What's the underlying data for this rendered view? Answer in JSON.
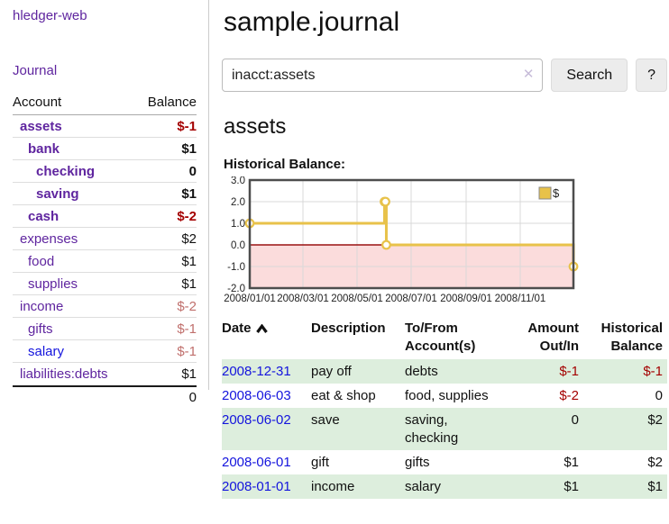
{
  "colors": {
    "purple": "#5f259f",
    "blue": "#1414dd",
    "negStrong": "#a40000",
    "negMuted": "#c06f6c",
    "green": "#ddeedd",
    "chartLine": "#e8c24a",
    "chartNegFill": "#fbdcdc",
    "chartZero": "#991111"
  },
  "app": {
    "title": "hledger-web",
    "nav_journal": "Journal"
  },
  "sidebar": {
    "header": {
      "account": "Account",
      "balance": "Balance"
    },
    "accounts": [
      {
        "name": "assets",
        "indent": 0,
        "bold": true,
        "balance": "$-1",
        "balance_style": "neg"
      },
      {
        "name": "bank",
        "indent": 1,
        "bold": true,
        "balance": "$1",
        "balance_style": ""
      },
      {
        "name": "checking",
        "indent": 2,
        "bold": true,
        "balance": "0",
        "balance_style": ""
      },
      {
        "name": "saving",
        "indent": 2,
        "bold": true,
        "balance": "$1",
        "balance_style": ""
      },
      {
        "name": "cash",
        "indent": 1,
        "bold": true,
        "balance": "$-2",
        "balance_style": "neg"
      },
      {
        "name": "expenses",
        "indent": 0,
        "bold": false,
        "balance": "$2",
        "balance_style": ""
      },
      {
        "name": "food",
        "indent": 1,
        "bold": false,
        "balance": "$1",
        "balance_style": ""
      },
      {
        "name": "supplies",
        "indent": 1,
        "bold": false,
        "balance": "$1",
        "balance_style": ""
      },
      {
        "name": "income",
        "indent": 0,
        "bold": false,
        "balance": "$-2",
        "balance_style": "negmuted"
      },
      {
        "name": "gifts",
        "indent": 1,
        "bold": false,
        "balance": "$-1",
        "balance_style": "negmuted"
      },
      {
        "name": "salary",
        "indent": 1,
        "bold": false,
        "blue": true,
        "balance": "$-1",
        "balance_style": "negmuted"
      },
      {
        "name": "liabilities:debts",
        "indent": 0,
        "bold": false,
        "balance": "$1",
        "balance_style": ""
      }
    ],
    "total": "0"
  },
  "main": {
    "title": "sample.journal",
    "search": {
      "value": "inacct:assets",
      "clear_icon": "✕",
      "button_label": "Search",
      "help_label": "?"
    },
    "account_heading": "assets"
  },
  "chart_data": {
    "type": "line",
    "step": true,
    "title": "Historical Balance:",
    "series": [
      {
        "name": "$",
        "color": "#e8c24a",
        "points": [
          [
            "2008-01-01",
            1
          ],
          [
            "2008-06-01",
            2
          ],
          [
            "2008-06-02",
            2
          ],
          [
            "2008-06-03",
            0
          ],
          [
            "2008-12-31",
            -1
          ]
        ]
      }
    ],
    "x_ticks": [
      "2008/01/01",
      "2008/03/01",
      "2008/05/01",
      "2008/07/01",
      "2008/09/01",
      "2008/11/01"
    ],
    "y_ticks": [
      3.0,
      2.0,
      1.0,
      0.0,
      -1.0,
      -2.0
    ],
    "ylim": [
      -2,
      3
    ],
    "xlim": [
      "2008-01-01",
      "2008-12-31"
    ],
    "grid": true,
    "legend": {
      "label": "$",
      "position": "top-right"
    },
    "negative_region_fill": "#fbdcdc",
    "zero_line_color": "#991111"
  },
  "register": {
    "columns": [
      "Date",
      "Description",
      "To/From Account(s)",
      "Amount Out/In",
      "Historical Balance"
    ],
    "sort": {
      "column": "Date",
      "direction": "ascending"
    },
    "rows": [
      {
        "date": "2008-12-31",
        "description": "pay off",
        "accounts": "debts",
        "amount": "$-1",
        "balance": "$-1",
        "shaded": true
      },
      {
        "date": "2008-06-03",
        "description": "eat & shop",
        "accounts": "food, supplies",
        "amount": "$-2",
        "balance": "0",
        "shaded": false
      },
      {
        "date": "2008-06-02",
        "description": "save",
        "accounts": "saving, checking",
        "amount": "0",
        "balance": "$2",
        "shaded": true
      },
      {
        "date": "2008-06-01",
        "description": "gift",
        "accounts": "gifts",
        "amount": "$1",
        "balance": "$2",
        "shaded": false
      },
      {
        "date": "2008-01-01",
        "description": "income",
        "accounts": "salary",
        "amount": "$1",
        "balance": "$1",
        "shaded": true
      }
    ]
  }
}
